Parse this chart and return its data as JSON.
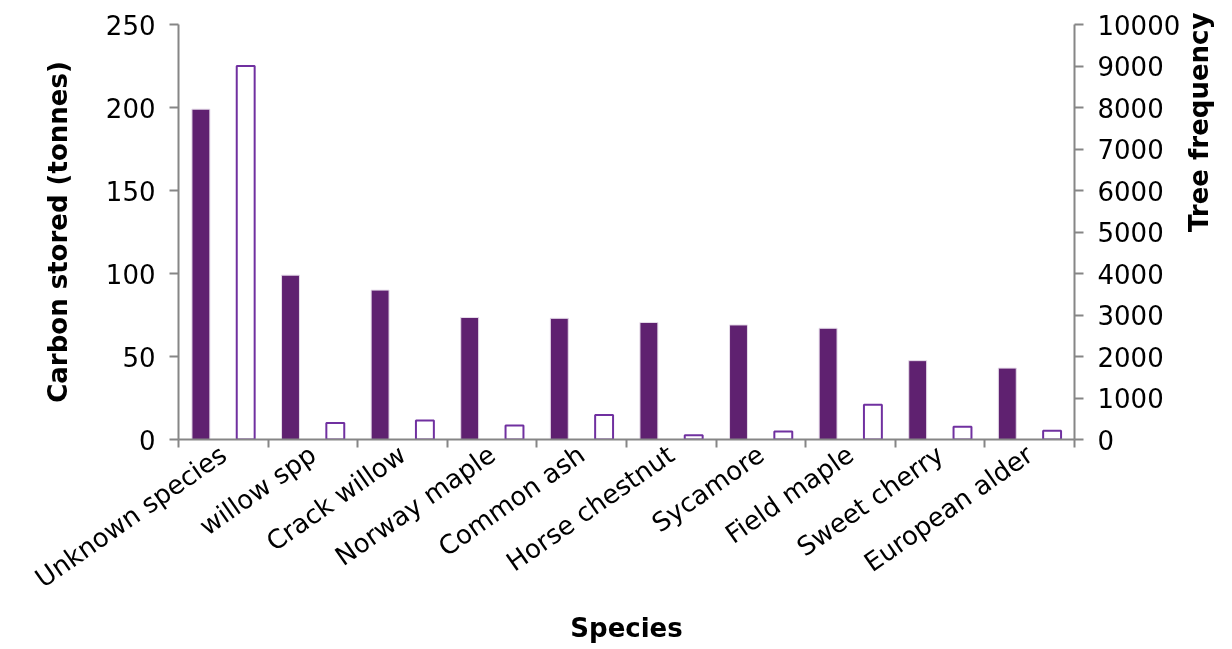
{
  "chart_data": {
    "type": "bar",
    "xlabel": "Species",
    "ylabel": "Carbon stored (tonnes)",
    "y2label": "Tree frequency",
    "categories": [
      "Unknown species",
      "willow spp",
      "Crack willow",
      "Norway maple",
      "Common ash",
      "Horse chestnut",
      "Sycamore",
      "Field maple",
      "Sweet cherry",
      "European alder"
    ],
    "series": [
      {
        "color": "#5f2170",
        "values": [
          199,
          99,
          90,
          73.5,
          73,
          70.5,
          69,
          67,
          47.5,
          43
        ]
      },
      {
        "color": "#7030a0",
        "axis": "y2",
        "values": [
          9000,
          400,
          460,
          340,
          590,
          100,
          190,
          840,
          310,
          210
        ]
      }
    ],
    "ylim": [
      0,
      250
    ],
    "yticks": [
      0,
      50,
      100,
      150,
      200,
      250
    ],
    "y2lim": [
      0,
      10000
    ],
    "y2ticks": [
      0,
      1000,
      2000,
      3000,
      4000,
      5000,
      6000,
      7000,
      8000,
      9000,
      10000
    ],
    "grid": false
  }
}
